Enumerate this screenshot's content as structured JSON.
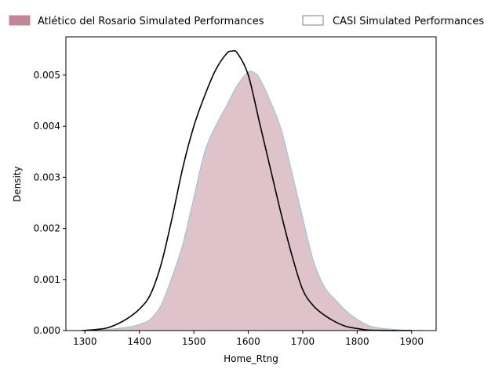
{
  "chart_data": {
    "type": "area",
    "xlabel": "Home_Rtng",
    "ylabel": "Density",
    "xlim": [
      1265,
      1945
    ],
    "ylim": [
      0,
      0.00575
    ],
    "grid": false,
    "legend_position": "top",
    "xticks": [
      1300,
      1400,
      1500,
      1600,
      1700,
      1800,
      1900
    ],
    "yticks": [
      0.0,
      0.001,
      0.002,
      0.003,
      0.004,
      0.005
    ],
    "ytick_labels": [
      "0.000",
      "0.001",
      "0.002",
      "0.003",
      "0.004",
      "0.005"
    ],
    "series": [
      {
        "name": "Atlético del Rosario Simulated Performances",
        "style": "filled",
        "fill_color": "#c08896",
        "fill_opacity": 0.5,
        "edge_color": "#9ec4dc",
        "x": [
          1295,
          1320,
          1340,
          1360,
          1380,
          1400,
          1420,
          1440,
          1460,
          1480,
          1500,
          1520,
          1540,
          1560,
          1580,
          1600,
          1610,
          1620,
          1640,
          1660,
          1680,
          1700,
          1720,
          1740,
          1760,
          1780,
          1800,
          1820,
          1840,
          1860,
          1880,
          1900,
          1920
        ],
        "y": [
          0.0,
          1e-05,
          2e-05,
          4e-05,
          7e-05,
          0.00012,
          0.00022,
          0.0005,
          0.00105,
          0.0017,
          0.0026,
          0.0035,
          0.004,
          0.0044,
          0.0048,
          0.00506,
          0.00505,
          0.00495,
          0.0045,
          0.00395,
          0.0031,
          0.0022,
          0.00135,
          0.00085,
          0.0006,
          0.00038,
          0.00022,
          0.0001,
          5e-05,
          3e-05,
          1e-05,
          5e-06,
          0.0
        ]
      },
      {
        "name": "CASI Simulated Performances",
        "style": "line",
        "line_color": "#000000",
        "x": [
          1295,
          1320,
          1340,
          1360,
          1380,
          1400,
          1420,
          1440,
          1460,
          1480,
          1500,
          1520,
          1540,
          1560,
          1570,
          1580,
          1600,
          1620,
          1640,
          1660,
          1680,
          1700,
          1720,
          1740,
          1760,
          1780,
          1800,
          1820,
          1840,
          1860,
          1880,
          1900
        ],
        "y": [
          0.0,
          2e-05,
          5e-05,
          0.00013,
          0.00025,
          0.00042,
          0.0007,
          0.0013,
          0.0022,
          0.0032,
          0.004,
          0.0046,
          0.0051,
          0.00542,
          0.00547,
          0.00543,
          0.005,
          0.0041,
          0.0032,
          0.0023,
          0.00148,
          0.0008,
          0.00048,
          0.0003,
          0.00017,
          8e-05,
          4e-05,
          1e-05,
          5e-06,
          0.0,
          0.0,
          0.0
        ]
      }
    ]
  },
  "colors": {
    "axis": "#000000",
    "legend_swatch_edge_filled": "#c08896",
    "legend_swatch_edge_empty": "#808080"
  }
}
